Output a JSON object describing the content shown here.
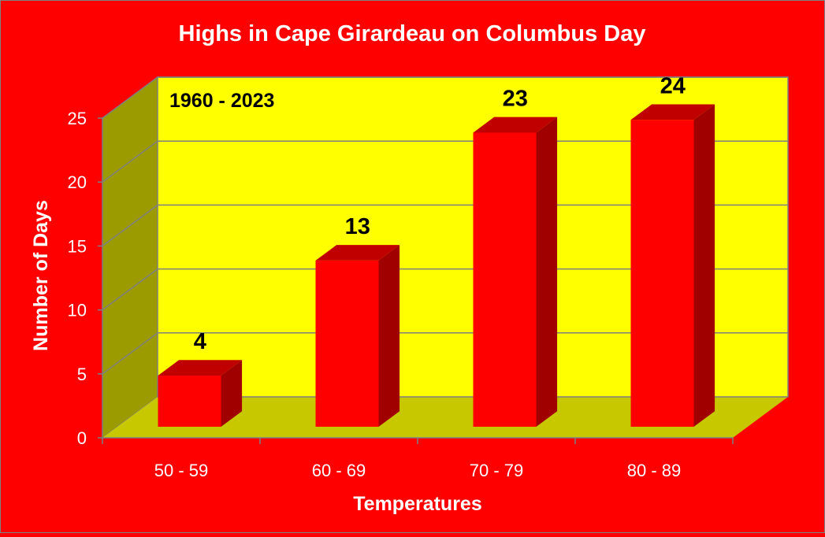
{
  "chart_data": {
    "type": "bar",
    "title": "Highs in Cape Girardeau on Columbus Day",
    "annotation": "1960 - 2023",
    "xlabel": "Temperatures",
    "ylabel": "Number of Days",
    "categories": [
      "50 - 59",
      "60 - 69",
      "70 - 79",
      "80 - 89"
    ],
    "values": [
      4,
      13,
      23,
      24
    ],
    "ylim": [
      0,
      25
    ],
    "yticks": [
      0,
      5,
      10,
      15,
      20,
      25
    ],
    "grid": true,
    "three_d": true,
    "data_labels": true
  },
  "colors": {
    "background": "#ff0000",
    "back_wall": "#ffff00",
    "side_wall": "#9b9b00",
    "floor": "#c8c800",
    "bar_front": "#ff0000",
    "bar_top": "#c00000",
    "bar_side": "#a00000",
    "gridline": "#7f7f7f",
    "label_text": "#ffffff",
    "data_label_text": "#000000"
  }
}
